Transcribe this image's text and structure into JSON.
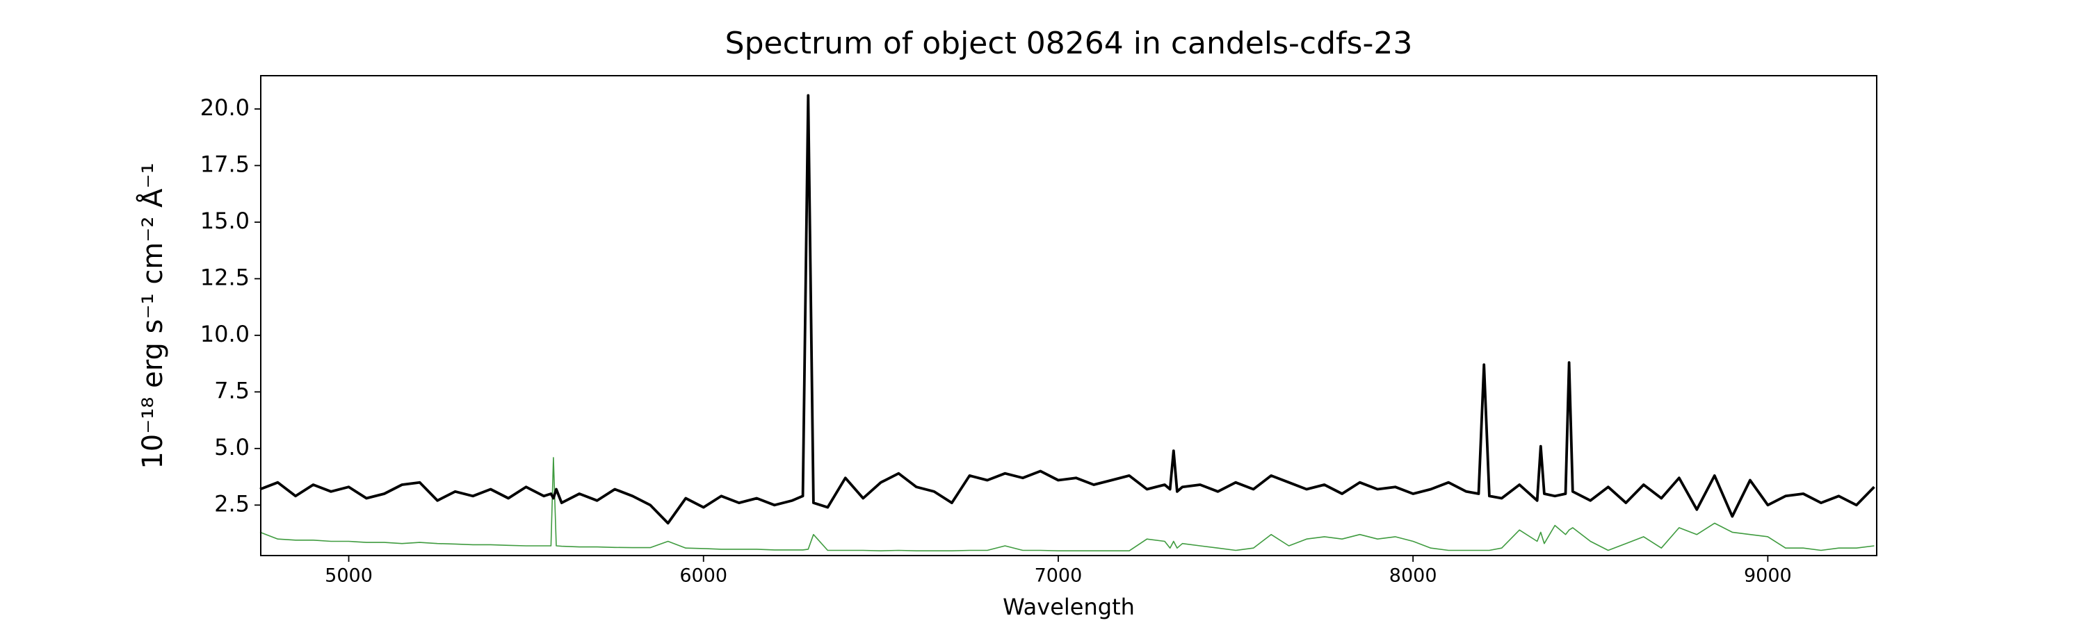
{
  "chart_data": {
    "type": "line",
    "title": "Spectrum of object 08264 in candels-cdfs-23",
    "x_label": "Wavelength",
    "y_label": "10⁻¹⁸ erg s⁻¹ cm⁻² Å⁻¹",
    "xlim": [
      4752,
      9307
    ],
    "ylim": [
      0.27,
      21.47
    ],
    "xticks": [
      5000,
      6000,
      7000,
      8000,
      9000
    ],
    "yticks": [
      2.5,
      {
        "value": 5,
        "label": "5.0"
      },
      7.5,
      {
        "value": 10,
        "label": "10.0"
      },
      12.5,
      {
        "value": 15,
        "label": "15.0"
      },
      17.5,
      {
        "value": 20,
        "label": "20.0"
      }
    ],
    "x": [
      4750,
      4800,
      4850,
      4900,
      4950,
      5000,
      5050,
      5100,
      5150,
      5200,
      5250,
      5300,
      5350,
      5400,
      5450,
      5500,
      5550,
      5570,
      5577,
      5585,
      5600,
      5650,
      5700,
      5750,
      5800,
      5850,
      5900,
      5950,
      6000,
      6050,
      6100,
      6150,
      6200,
      6250,
      6280,
      6295,
      6310,
      6350,
      6400,
      6450,
      6500,
      6550,
      6600,
      6650,
      6700,
      6750,
      6800,
      6850,
      6900,
      6950,
      7000,
      7050,
      7100,
      7150,
      7200,
      7250,
      7300,
      7315,
      7325,
      7335,
      7350,
      7400,
      7450,
      7500,
      7550,
      7600,
      7650,
      7700,
      7750,
      7800,
      7850,
      7900,
      7950,
      8000,
      8050,
      8100,
      8150,
      8185,
      8200,
      8215,
      8250,
      8300,
      8350,
      8360,
      8370,
      8400,
      8430,
      8440,
      8450,
      8500,
      8550,
      8600,
      8650,
      8700,
      8750,
      8800,
      8850,
      8900,
      8950,
      9000,
      9050,
      9100,
      9150,
      9200,
      9250,
      9300
    ],
    "series": [
      {
        "color": "#000000",
        "width": 3.8,
        "values": [
          3.2,
          3.5,
          2.9,
          3.4,
          3.1,
          3.3,
          2.8,
          3.0,
          3.4,
          3.5,
          2.7,
          3.1,
          2.9,
          3.2,
          2.8,
          3.3,
          2.9,
          3.0,
          2.8,
          3.2,
          2.6,
          3.0,
          2.7,
          3.2,
          2.9,
          2.5,
          1.7,
          2.8,
          2.4,
          2.9,
          2.6,
          2.8,
          2.5,
          2.7,
          2.9,
          20.6,
          2.6,
          2.4,
          3.7,
          2.8,
          3.5,
          3.9,
          3.3,
          3.1,
          2.6,
          3.8,
          3.6,
          3.9,
          3.7,
          4.0,
          3.6,
          3.7,
          3.4,
          3.6,
          3.8,
          3.2,
          3.4,
          3.2,
          4.9,
          3.1,
          3.3,
          3.4,
          3.1,
          3.5,
          3.2,
          3.8,
          3.5,
          3.2,
          3.4,
          3.0,
          3.5,
          3.2,
          3.3,
          3.0,
          3.2,
          3.5,
          3.1,
          3.0,
          8.7,
          2.9,
          2.8,
          3.4,
          2.7,
          5.1,
          3.0,
          2.9,
          3.0,
          8.8,
          3.1,
          2.7,
          3.3,
          2.6,
          3.4,
          2.8,
          3.7,
          2.3,
          3.8,
          2.0,
          3.6,
          2.5,
          2.9,
          3.0,
          2.6,
          2.9,
          2.5,
          3.3
        ]
      },
      {
        "color": "#3f9b3f",
        "width": 1.6,
        "values": [
          1.3,
          1.0,
          0.95,
          0.95,
          0.9,
          0.9,
          0.85,
          0.85,
          0.8,
          0.85,
          0.8,
          0.78,
          0.75,
          0.75,
          0.72,
          0.7,
          0.7,
          0.7,
          4.6,
          0.7,
          0.68,
          0.65,
          0.65,
          0.63,
          0.62,
          0.62,
          0.9,
          0.6,
          0.58,
          0.55,
          0.55,
          0.55,
          0.52,
          0.52,
          0.52,
          0.55,
          1.2,
          0.5,
          0.5,
          0.5,
          0.48,
          0.5,
          0.48,
          0.48,
          0.48,
          0.5,
          0.5,
          0.7,
          0.5,
          0.5,
          0.48,
          0.48,
          0.48,
          0.48,
          0.48,
          1.0,
          0.9,
          0.6,
          0.9,
          0.6,
          0.8,
          0.7,
          0.6,
          0.5,
          0.6,
          1.2,
          0.7,
          1.0,
          1.1,
          1.0,
          1.2,
          1.0,
          1.1,
          0.9,
          0.6,
          0.5,
          0.5,
          0.5,
          0.5,
          0.5,
          0.6,
          1.4,
          0.9,
          1.3,
          0.8,
          1.6,
          1.2,
          1.4,
          1.5,
          0.9,
          0.5,
          0.8,
          1.1,
          0.6,
          1.5,
          1.2,
          1.7,
          1.3,
          1.2,
          1.1,
          0.6,
          0.6,
          0.5,
          0.6,
          0.6,
          0.7
        ]
      }
    ]
  }
}
